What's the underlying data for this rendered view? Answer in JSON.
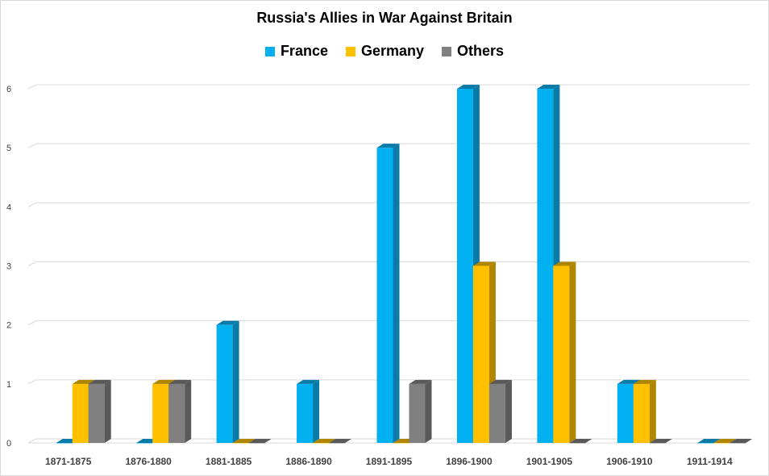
{
  "chart_data": {
    "type": "bar",
    "title": "Russia's  Allies in War Against Britain",
    "categories": [
      "1871-1875",
      "1876-1880",
      "1881-1885",
      "1886-1890",
      "1891-1895",
      "1896-1900",
      "1901-1905",
      "1906-1910",
      "1911-1914"
    ],
    "series": [
      {
        "name": "France",
        "color": "#00b0f0",
        "side_color": "#0a7aa8",
        "values": [
          0,
          0,
          2,
          1,
          5,
          6,
          6,
          1,
          0
        ]
      },
      {
        "name": "Germany",
        "color": "#ffc000",
        "side_color": "#b08600",
        "values": [
          1,
          1,
          0,
          0,
          0,
          3,
          3,
          1,
          0
        ]
      },
      {
        "name": "Others",
        "color": "#808080",
        "side_color": "#595959",
        "values": [
          1,
          1,
          0,
          0,
          1,
          1,
          0,
          0,
          0
        ]
      }
    ],
    "yticks": [
      "0",
      "1",
      "2",
      "3",
      "4",
      "5",
      "6"
    ],
    "ylim": [
      0,
      6
    ],
    "grid": true,
    "legend_position": "top",
    "three_d": true
  }
}
